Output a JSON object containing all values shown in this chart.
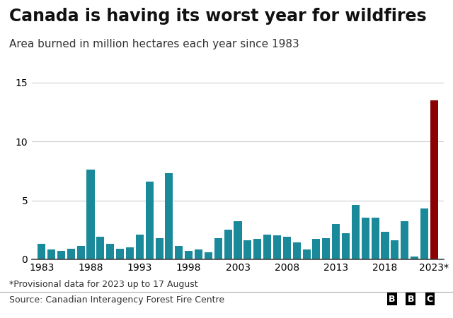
{
  "title": "Canada is having its worst year for wildfires",
  "subtitle": "Area burned in million hectares each year since 1983",
  "footnote": "*Provisional data for 2023 up to 17 August",
  "source": "Source: Canadian Interagency Forest Fire Centre",
  "years": [
    1983,
    1984,
    1985,
    1986,
    1987,
    1988,
    1989,
    1990,
    1991,
    1992,
    1993,
    1994,
    1995,
    1996,
    1997,
    1998,
    1999,
    2000,
    2001,
    2002,
    2003,
    2004,
    2005,
    2006,
    2007,
    2008,
    2009,
    2010,
    2011,
    2012,
    2013,
    2014,
    2015,
    2016,
    2017,
    2018,
    2019,
    2020,
    2021,
    2022,
    2023
  ],
  "values": [
    1.3,
    0.8,
    0.7,
    0.9,
    1.1,
    7.6,
    1.9,
    1.3,
    0.9,
    1.0,
    2.1,
    6.6,
    1.8,
    7.3,
    1.1,
    0.7,
    0.8,
    0.6,
    1.8,
    2.5,
    3.2,
    1.6,
    1.7,
    2.1,
    2.0,
    1.9,
    1.4,
    0.8,
    1.7,
    1.8,
    3.0,
    2.2,
    4.6,
    3.5,
    3.5,
    2.3,
    1.6,
    3.2,
    0.2,
    4.3,
    13.5
  ],
  "bar_color_default": "#1a8a9a",
  "bar_color_highlight": "#8b0000",
  "highlight_year": 2023,
  "xlim": [
    1982.0,
    2024.0
  ],
  "ylim": [
    0,
    15
  ],
  "yticks": [
    0,
    5,
    10,
    15
  ],
  "xticks": [
    1983,
    1988,
    1993,
    1998,
    2003,
    2008,
    2013,
    2018,
    2023
  ],
  "background_color": "#ffffff",
  "title_fontsize": 17,
  "subtitle_fontsize": 11,
  "tick_fontsize": 10,
  "footnote_fontsize": 9,
  "source_fontsize": 9
}
